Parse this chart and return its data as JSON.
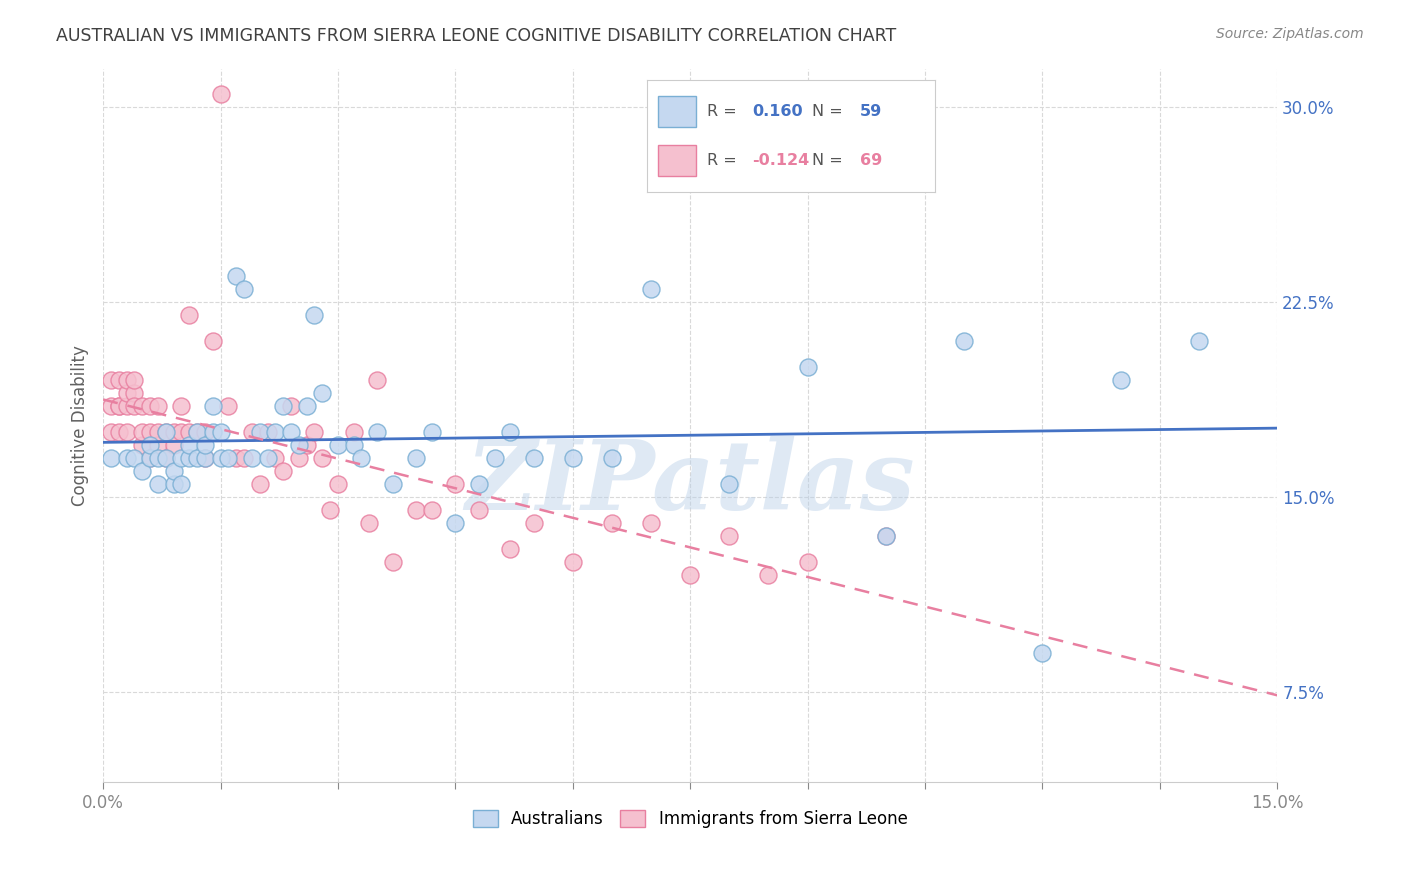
{
  "title": "AUSTRALIAN VS IMMIGRANTS FROM SIERRA LEONE COGNITIVE DISABILITY CORRELATION CHART",
  "source": "Source: ZipAtlas.com",
  "ylabel": "Cognitive Disability",
  "x_range": [
    0.0,
    0.15
  ],
  "y_range": [
    0.04,
    0.315
  ],
  "watermark": "ZIPatlas",
  "australians_color": "#c5d8f0",
  "australians_edge": "#7aafd4",
  "immigrants_color": "#f5c0cf",
  "immigrants_edge": "#e87fa0",
  "trendline_australian_color": "#4472c4",
  "trendline_immigrant_color": "#e87fa0",
  "background_color": "#ffffff",
  "grid_color": "#d9d9d9",
  "title_color": "#404040",
  "axis_tick_color": "#4472c4",
  "aus_R": "0.160",
  "aus_N": "59",
  "imm_R": "-0.124",
  "imm_N": "69",
  "australians_x": [
    0.001,
    0.003,
    0.004,
    0.005,
    0.006,
    0.006,
    0.007,
    0.007,
    0.008,
    0.008,
    0.009,
    0.009,
    0.01,
    0.01,
    0.011,
    0.011,
    0.012,
    0.012,
    0.013,
    0.013,
    0.014,
    0.014,
    0.015,
    0.015,
    0.016,
    0.017,
    0.018,
    0.019,
    0.02,
    0.021,
    0.022,
    0.023,
    0.024,
    0.025,
    0.026,
    0.027,
    0.028,
    0.03,
    0.032,
    0.033,
    0.035,
    0.037,
    0.04,
    0.042,
    0.045,
    0.048,
    0.05,
    0.052,
    0.055,
    0.06,
    0.065,
    0.07,
    0.08,
    0.09,
    0.1,
    0.11,
    0.12,
    0.13,
    0.14
  ],
  "australians_y": [
    0.165,
    0.165,
    0.165,
    0.16,
    0.165,
    0.17,
    0.155,
    0.165,
    0.165,
    0.175,
    0.155,
    0.16,
    0.155,
    0.165,
    0.165,
    0.17,
    0.175,
    0.165,
    0.165,
    0.17,
    0.175,
    0.185,
    0.175,
    0.165,
    0.165,
    0.235,
    0.23,
    0.165,
    0.175,
    0.165,
    0.175,
    0.185,
    0.175,
    0.17,
    0.185,
    0.22,
    0.19,
    0.17,
    0.17,
    0.165,
    0.175,
    0.155,
    0.165,
    0.175,
    0.14,
    0.155,
    0.165,
    0.175,
    0.165,
    0.165,
    0.165,
    0.23,
    0.155,
    0.2,
    0.135,
    0.21,
    0.09,
    0.195,
    0.21
  ],
  "immigrants_x": [
    0.001,
    0.001,
    0.001,
    0.002,
    0.002,
    0.002,
    0.002,
    0.003,
    0.003,
    0.003,
    0.003,
    0.004,
    0.004,
    0.004,
    0.005,
    0.005,
    0.005,
    0.006,
    0.006,
    0.006,
    0.007,
    0.007,
    0.007,
    0.008,
    0.008,
    0.009,
    0.009,
    0.01,
    0.01,
    0.011,
    0.011,
    0.012,
    0.013,
    0.013,
    0.014,
    0.015,
    0.016,
    0.017,
    0.018,
    0.019,
    0.02,
    0.021,
    0.022,
    0.023,
    0.024,
    0.025,
    0.026,
    0.027,
    0.028,
    0.029,
    0.03,
    0.032,
    0.034,
    0.035,
    0.037,
    0.04,
    0.042,
    0.045,
    0.048,
    0.052,
    0.055,
    0.06,
    0.065,
    0.07,
    0.075,
    0.08,
    0.085,
    0.09,
    0.1
  ],
  "immigrants_y": [
    0.185,
    0.175,
    0.195,
    0.185,
    0.175,
    0.185,
    0.195,
    0.185,
    0.175,
    0.19,
    0.195,
    0.19,
    0.185,
    0.195,
    0.17,
    0.175,
    0.185,
    0.165,
    0.175,
    0.185,
    0.17,
    0.175,
    0.185,
    0.165,
    0.175,
    0.17,
    0.175,
    0.175,
    0.185,
    0.22,
    0.175,
    0.175,
    0.165,
    0.175,
    0.21,
    0.305,
    0.185,
    0.165,
    0.165,
    0.175,
    0.155,
    0.175,
    0.165,
    0.16,
    0.185,
    0.165,
    0.17,
    0.175,
    0.165,
    0.145,
    0.155,
    0.175,
    0.14,
    0.195,
    0.125,
    0.145,
    0.145,
    0.155,
    0.145,
    0.13,
    0.14,
    0.125,
    0.14,
    0.14,
    0.12,
    0.135,
    0.12,
    0.125,
    0.135
  ]
}
